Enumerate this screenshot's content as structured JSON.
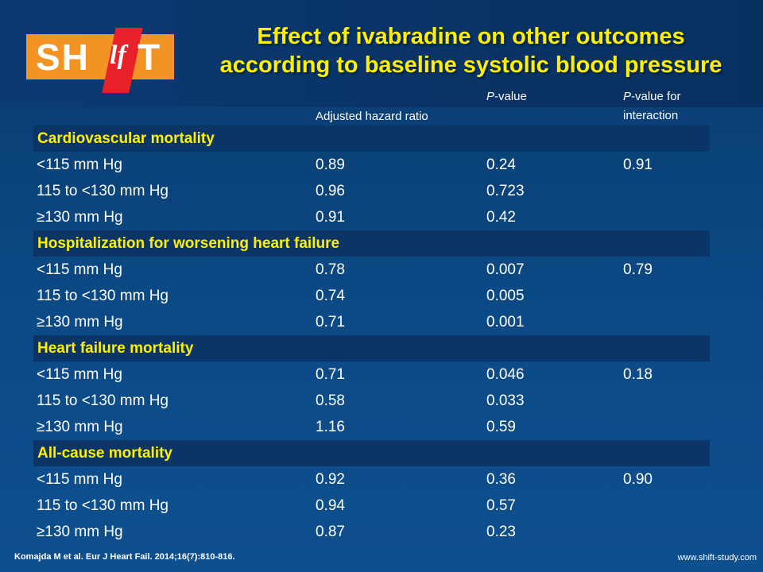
{
  "logo": {
    "text": "SH",
    "mark": "lf",
    "tail": "T"
  },
  "title": {
    "line1": "Effect of ivabradine on other outcomes",
    "line2": "according to baseline systolic blood pressure"
  },
  "columns": {
    "hr": "Adjusted hazard ratio",
    "p_italic": "P",
    "p_rest": "-value",
    "pint_italic": "P",
    "pint_rest": "-value for",
    "pint_line2": "interaction"
  },
  "sections": [
    {
      "title": "Cardiovascular mortality",
      "rows": [
        {
          "label": "<115 mm Hg",
          "hr": "0.89",
          "p": "0.24",
          "pint": "0.91"
        },
        {
          "label": "115 to <130 mm Hg",
          "hr": "0.96",
          "p": "0.723",
          "pint": ""
        },
        {
          "label": "≥130 mm Hg",
          "hr": "0.91",
          "p": "0.42",
          "pint": ""
        }
      ]
    },
    {
      "title": "Hospitalization for worsening heart failure",
      "rows": [
        {
          "label": "<115 mm Hg",
          "hr": "0.78",
          "p": "0.007",
          "pint": "0.79"
        },
        {
          "label": "115 to <130 mm Hg",
          "hr": "0.74",
          "p": "0.005",
          "pint": ""
        },
        {
          "label": "≥130 mm Hg",
          "hr": "0.71",
          "p": "0.001",
          "pint": ""
        }
      ]
    },
    {
      "title": "Heart failure mortality",
      "rows": [
        {
          "label": "<115 mm Hg",
          "hr": "0.71",
          "p": "0.046",
          "pint": "0.18"
        },
        {
          "label": "115 to <130 mm Hg",
          "hr": "0.58",
          "p": "0.033",
          "pint": ""
        },
        {
          "label": "≥130 mm Hg",
          "hr": "1.16",
          "p": "0.59",
          "pint": ""
        }
      ]
    },
    {
      "title": "All-cause mortality",
      "rows": [
        {
          "label": "<115 mm Hg",
          "hr": "0.92",
          "p": "0.36",
          "pint": "0.90"
        },
        {
          "label": "115 to <130 mm Hg",
          "hr": "0.94",
          "p": "0.57",
          "pint": ""
        },
        {
          "label": "≥130 mm Hg",
          "hr": "0.87",
          "p": "0.23",
          "pint": ""
        }
      ]
    }
  ],
  "footer": {
    "citation": "Komajda M et al. Eur J Heart Fail. 2014;16(7):810-816.",
    "website": "www.shift-study.com"
  },
  "colors": {
    "title": "#ffef00",
    "section_text": "#ffef00",
    "logo_orange": "#f39323",
    "logo_red": "#e8202a"
  }
}
